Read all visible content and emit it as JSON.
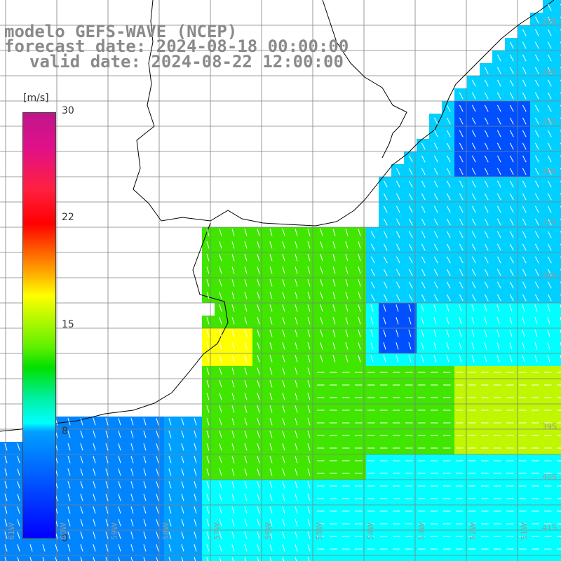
{
  "title": {
    "line1": "modelo GEFS-WAVE (NCEP)",
    "line2": "forecast date: 2024-08-18 00:00:00",
    "line3": "valid date: 2024-08-22 12:00:00"
  },
  "colorbar": {
    "unit": "[m/s]",
    "ticks": [
      "30",
      "22",
      "15",
      "8",
      "0"
    ],
    "colors": [
      "#0000ff",
      "#00a0ff",
      "#00ffff",
      "#00e000",
      "#ffff00",
      "#ff0000",
      "#c0158a"
    ]
  },
  "lat_labels": [
    "33S",
    "34S",
    "35S",
    "36S",
    "37S",
    "38S",
    "39S",
    "40S",
    "41S"
  ],
  "lon_labels": [
    "61W",
    "60W",
    "59W",
    "58W",
    "57W",
    "56W",
    "55W",
    "54W",
    "53W",
    "52W",
    "51W"
  ],
  "colors": {
    "land": "#ffffff",
    "grid": "#808080",
    "coast": "#000000",
    "arrow": "#ffffff",
    "title": "#8a8a8a"
  }
}
